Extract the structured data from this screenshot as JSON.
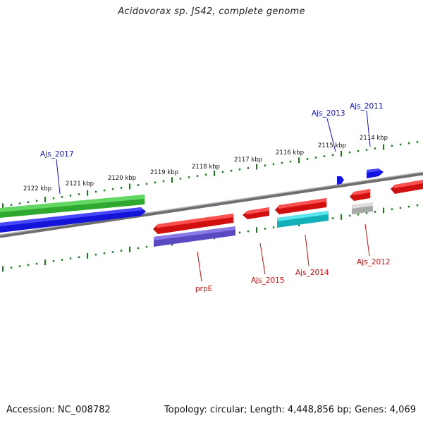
{
  "title": "Acidovorax sp. JS42, complete genome",
  "footer": {
    "accession": "Accession: NC_008782",
    "summary": "Topology: circular; Length: 4,448,856 bp; Genes: 4,069"
  },
  "ruler_labels": [
    "2122 kbp",
    "2121 kbp",
    "2120 kbp",
    "2119 kbp",
    "2118 kbp",
    "2117 kbp",
    "2116 kbp",
    "2115 kbp",
    "2114 kbp"
  ],
  "gene_labels": {
    "top": [
      "Ajs_2017",
      "Ajs_2013",
      "Ajs_2011"
    ],
    "bottom": [
      "prpE",
      "Ajs_2015",
      "Ajs_2014",
      "Ajs_2012"
    ]
  },
  "colors": {
    "forward_cds": "#1f1fe0",
    "reverse_cds": "#e01010",
    "green_feature": "#3cc23c",
    "purple_feature": "#6a5acd",
    "cyan_feature": "#19c2c8",
    "gray_feature": "#bdbdbd",
    "backbone": "#8a8a8a",
    "ruler": "#1a7a1a",
    "top_label": "#1212c8",
    "bottom_label": "#c81212"
  }
}
